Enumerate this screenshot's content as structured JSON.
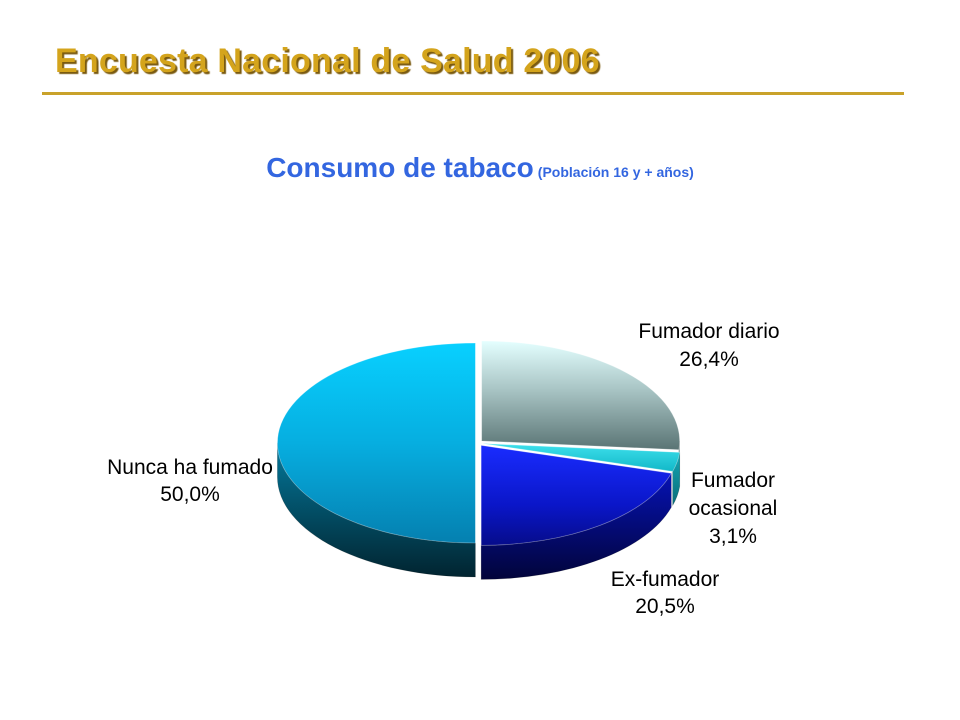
{
  "header": {
    "title": "Encuesta Nacional de Salud 2006"
  },
  "chart_data": {
    "type": "pie",
    "title": "Consumo de tabaco",
    "subtitle": "(Población 16 y + años)",
    "unit": "%",
    "slices": [
      {
        "label": "Fumador diario",
        "value": 26.4,
        "value_label": "26,4%",
        "color": "#a8c8c8"
      },
      {
        "label": "Fumador ocasional",
        "value": 3.1,
        "value_label": "3,1%",
        "color": "#1ec8d8"
      },
      {
        "label": "Ex-fumador",
        "value": 20.5,
        "value_label": "20,5%",
        "color": "#0a1ad8"
      },
      {
        "label": "Nunca ha fumado",
        "value": 50.0,
        "value_label": "50,0%",
        "color": "#06b4e8"
      }
    ]
  }
}
